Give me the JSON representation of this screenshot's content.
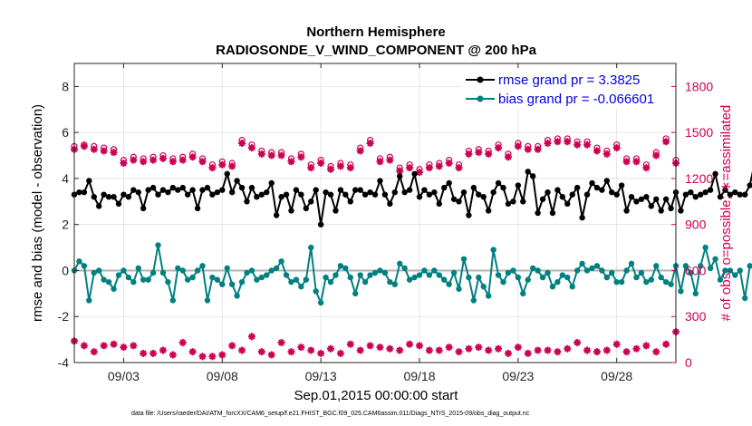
{
  "chart_data": {
    "type": "line",
    "title": "Northern Hemisphere",
    "subtitle": "RADIOSONDE_V_WIND_COMPONENT @ 200 hPa",
    "xlabel": "Sep.01,2015 00:00:00 start",
    "ylabel_left": "rmse and bias (model - observation)",
    "ylabel_right": "# of obs: o=possible; ∗=assimilated",
    "footnote": "data file: /Users/raeder/DAI/ATM_forcXX/CAM6_setup/f.e21.FHIST_BGC.f09_025.CAM6assim.011/Diags_NTrS_2015-09/obs_diag_output.nc",
    "x_range_days": [
      0.5,
      31
    ],
    "x_ticks": [
      {
        "day": 3,
        "label": "09/03"
      },
      {
        "day": 8,
        "label": "09/08"
      },
      {
        "day": 13,
        "label": "09/13"
      },
      {
        "day": 18,
        "label": "09/18"
      },
      {
        "day": 23,
        "label": "09/23"
      },
      {
        "day": 28,
        "label": "09/28"
      }
    ],
    "ylim_left": [
      -4,
      9
    ],
    "yticks_left": [
      -4,
      -2,
      0,
      2,
      4,
      6,
      8
    ],
    "ylim_right": [
      0,
      1950
    ],
    "yticks_right": [
      0,
      300,
      600,
      900,
      1200,
      1500,
      1800
    ],
    "series": [
      {
        "name": "rmse",
        "legend": "rmse grand pr = 3.3825",
        "color": "#000000",
        "x_start_day": 0.5,
        "x_step_days": 0.25,
        "values": [
          3.3,
          3.4,
          3.4,
          3.9,
          3.2,
          2.8,
          3.3,
          3.2,
          3.2,
          2.9,
          3.3,
          3.2,
          3.5,
          3.4,
          2.7,
          3.5,
          3.6,
          3.3,
          3.5,
          3.4,
          3.6,
          3.5,
          3.6,
          3.3,
          3.5,
          2.7,
          3.5,
          3.6,
          3.3,
          3.4,
          3.5,
          4.2,
          3.4,
          3.9,
          3.6,
          3.0,
          3.6,
          3.2,
          3.3,
          3.4,
          3.8,
          2.4,
          3.2,
          3.3,
          2.6,
          3.5,
          3.3,
          2.7,
          3.0,
          3.5,
          2.0,
          3.4,
          3.3,
          2.6,
          3.5,
          3.3,
          3.0,
          3.5,
          3.5,
          3.3,
          3.4,
          3.3,
          3.9,
          3.3,
          2.9,
          3.4,
          4.1,
          3.4,
          3.5,
          4.2,
          3.2,
          3.5,
          3.3,
          3.4,
          2.9,
          3.6,
          3.8,
          3.1,
          3.0,
          3.4,
          2.4,
          3.6,
          3.3,
          3.2,
          2.6,
          3.4,
          3.8,
          3.6,
          2.9,
          3.0,
          3.7,
          3.0,
          4.3,
          4.1,
          2.5,
          3.1,
          3.4,
          2.5,
          3.5,
          3.2,
          2.9,
          3.3,
          3.6,
          2.3,
          3.3,
          3.8,
          3.6,
          3.5,
          3.9,
          3.4,
          3.3,
          3.7,
          2.6,
          3.2,
          3.0,
          3.1,
          3.2,
          2.8,
          3.1,
          2.6,
          3.1,
          2.7,
          3.4,
          2.6,
          3.3,
          3.4,
          3.2,
          3.3,
          3.4,
          3.5,
          4.2,
          3.2,
          3.5,
          3.3,
          3.4,
          3.3,
          3.3,
          3.7,
          4.7
        ]
      },
      {
        "name": "bias",
        "legend": "bias grand pr = -0.066601",
        "color": "#008080",
        "x_start_day": 0.5,
        "x_step_days": 0.25,
        "values": [
          0.0,
          0.4,
          0.2,
          -1.3,
          -0.1,
          0.0,
          -0.4,
          -0.5,
          -0.8,
          -0.2,
          0.0,
          -0.3,
          -0.5,
          0.1,
          -0.4,
          -0.4,
          -0.1,
          1.1,
          -0.1,
          -0.5,
          -1.3,
          0.1,
          0.0,
          -0.4,
          -0.3,
          0.0,
          0.2,
          -1.3,
          -0.3,
          -0.4,
          -0.6,
          0.1,
          -0.6,
          -1.1,
          -0.5,
          -0.1,
          0.0,
          -0.4,
          -0.3,
          -0.2,
          0.0,
          0.1,
          0.4,
          -0.2,
          -0.5,
          -0.4,
          -0.7,
          -0.4,
          1.0,
          -0.9,
          -1.4,
          -0.3,
          -0.5,
          -0.2,
          0.2,
          0.1,
          -0.3,
          -1.0,
          -0.2,
          -0.5,
          -0.2,
          -0.1,
          0.0,
          -0.1,
          -0.5,
          -0.6,
          0.3,
          0.1,
          -0.4,
          -0.3,
          -0.2,
          0.0,
          -0.2,
          0.0,
          -0.2,
          -0.4,
          -0.6,
          -0.1,
          -0.8,
          0.5,
          -0.3,
          -1.3,
          -0.3,
          -0.7,
          -1.1,
          0.9,
          -0.2,
          -0.5,
          -0.1,
          0.0,
          -0.3,
          -1.0,
          -0.4,
          0.1,
          0.0,
          -0.3,
          -0.1,
          -0.7,
          -0.5,
          -0.2,
          -0.3,
          -0.7,
          0.0,
          0.3,
          0.0,
          0.1,
          0.2,
          0.0,
          -0.3,
          -0.1,
          -0.5,
          -0.5,
          0.0,
          0.3,
          -0.3,
          -0.1,
          -0.5,
          -0.4,
          0.2,
          -0.3,
          -0.5,
          -0.6,
          0.2,
          -0.9,
          0.2,
          -0.1,
          -1.0,
          0.2,
          1.0,
          0.1,
          0.5,
          -0.4,
          0.0,
          0.0,
          -0.2,
          0.0,
          -1.2,
          0.2,
          0.2
        ]
      }
    ],
    "obs_possible": {
      "marker": "o",
      "color": "#cc0052",
      "x_start_day": 0.5,
      "x_step_days": 0.5,
      "values": [
        1410,
        1420,
        1410,
        1400,
        1390,
        1320,
        1340,
        1330,
        1340,
        1350,
        1330,
        1340,
        1360,
        1330,
        1290,
        1310,
        1300,
        1450,
        1420,
        1380,
        1370,
        1370,
        1330,
        1360,
        1290,
        1320,
        1280,
        1300,
        1290,
        1400,
        1450,
        1330,
        1340,
        1270,
        1290,
        1260,
        1290,
        1300,
        1320,
        1290,
        1380,
        1390,
        1380,
        1420,
        1360,
        1430,
        1410,
        1410,
        1450,
        1460,
        1460,
        1440,
        1440,
        1400,
        1380,
        1420,
        1330,
        1330,
        1290,
        1370,
        1460,
        1320
      ]
    },
    "obs_assimilated": {
      "marker": "*",
      "color": "#cc0052",
      "x_start_day": 0.5,
      "x_step_days": 0.5,
      "values": [
        1390,
        1410,
        1390,
        1380,
        1370,
        1300,
        1320,
        1310,
        1320,
        1330,
        1310,
        1320,
        1340,
        1310,
        1270,
        1290,
        1280,
        1430,
        1400,
        1360,
        1350,
        1350,
        1310,
        1340,
        1270,
        1300,
        1260,
        1280,
        1270,
        1380,
        1430,
        1310,
        1320,
        1250,
        1270,
        1240,
        1270,
        1280,
        1300,
        1270,
        1360,
        1370,
        1360,
        1400,
        1340,
        1410,
        1390,
        1390,
        1430,
        1440,
        1440,
        1420,
        1420,
        1380,
        1360,
        1400,
        1310,
        1310,
        1270,
        1350,
        1440,
        1300
      ]
    },
    "obs_lower": {
      "marker": "*",
      "color": "#cc0052",
      "x_start_day": 0.5,
      "x_step_days": 0.5,
      "values": [
        140,
        110,
        70,
        110,
        120,
        100,
        110,
        60,
        60,
        80,
        50,
        130,
        70,
        40,
        40,
        50,
        110,
        80,
        170,
        70,
        50,
        130,
        70,
        100,
        80,
        60,
        90,
        60,
        120,
        80,
        110,
        100,
        90,
        80,
        120,
        110,
        80,
        80,
        100,
        70,
        90,
        100,
        80,
        90,
        60,
        100,
        60,
        80,
        80,
        70,
        90,
        130,
        80,
        70,
        80,
        120,
        70,
        90,
        110,
        70,
        120,
        200
      ]
    }
  }
}
